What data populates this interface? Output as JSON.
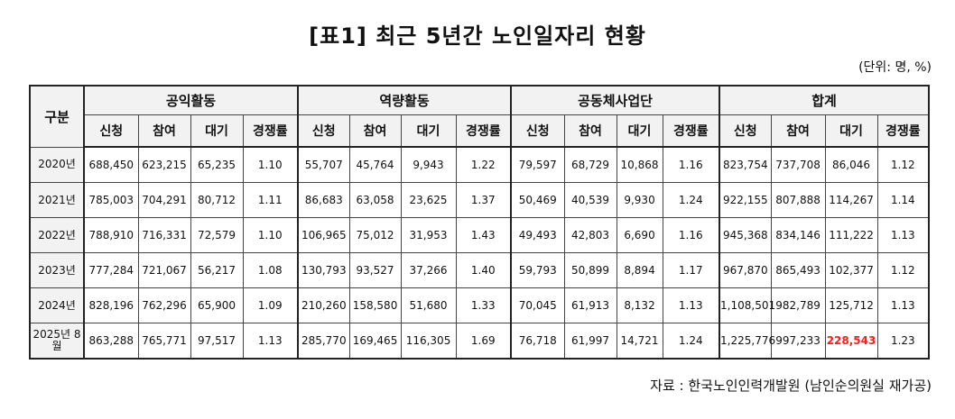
{
  "title": "[표1] 최근 5년간 노인일자리 현황",
  "unit": "(단위: 명, %)",
  "header": {
    "row_label": "구분",
    "groups": [
      "공익활동",
      "역량활동",
      "공동체사업단",
      "합계"
    ],
    "columns": [
      "신청",
      "참여",
      "대기",
      "경쟁률"
    ]
  },
  "rows": [
    {
      "year": "2020년",
      "cells": [
        "688,450",
        "623,215",
        "65,235",
        "1.10",
        "55,707",
        "45,764",
        "9,943",
        "1.22",
        "79,597",
        "68,729",
        "10,868",
        "1.16",
        "823,754",
        "737,708",
        "86,046",
        "1.12"
      ]
    },
    {
      "year": "2021년",
      "cells": [
        "785,003",
        "704,291",
        "80,712",
        "1.11",
        "86,683",
        "63,058",
        "23,625",
        "1.37",
        "50,469",
        "40,539",
        "9,930",
        "1.24",
        "922,155",
        "807,888",
        "114,267",
        "1.14"
      ]
    },
    {
      "year": "2022년",
      "cells": [
        "788,910",
        "716,331",
        "72,579",
        "1.10",
        "106,965",
        "75,012",
        "31,953",
        "1.43",
        "49,493",
        "42,803",
        "6,690",
        "1.16",
        "945,368",
        "834,146",
        "111,222",
        "1.13"
      ]
    },
    {
      "year": "2023년",
      "cells": [
        "777,284",
        "721,067",
        "56,217",
        "1.08",
        "130,793",
        "93,527",
        "37,266",
        "1.40",
        "59,793",
        "50,899",
        "8,894",
        "1.17",
        "967,870",
        "865,493",
        "102,377",
        "1.12"
      ]
    },
    {
      "year": "2024년",
      "cells": [
        "828,196",
        "762,296",
        "65,900",
        "1.09",
        "210,260",
        "158,580",
        "51,680",
        "1.33",
        "70,045",
        "61,913",
        "8,132",
        "1.13",
        "1,108,501",
        "982,789",
        "125,712",
        "1.13"
      ]
    },
    {
      "year": "2025년 8월",
      "cells": [
        "863,288",
        "765,771",
        "97,517",
        "1.13",
        "285,770",
        "169,465",
        "116,305",
        "1.69",
        "76,718",
        "61,997",
        "14,721",
        "1.24",
        "1,225,776",
        "997,233",
        "228,543",
        "1.23"
      ]
    }
  ],
  "highlight_color": "#ff1a1a",
  "source": "자료 : 한국노인인력개발원 (남인순의원실 재가공)"
}
